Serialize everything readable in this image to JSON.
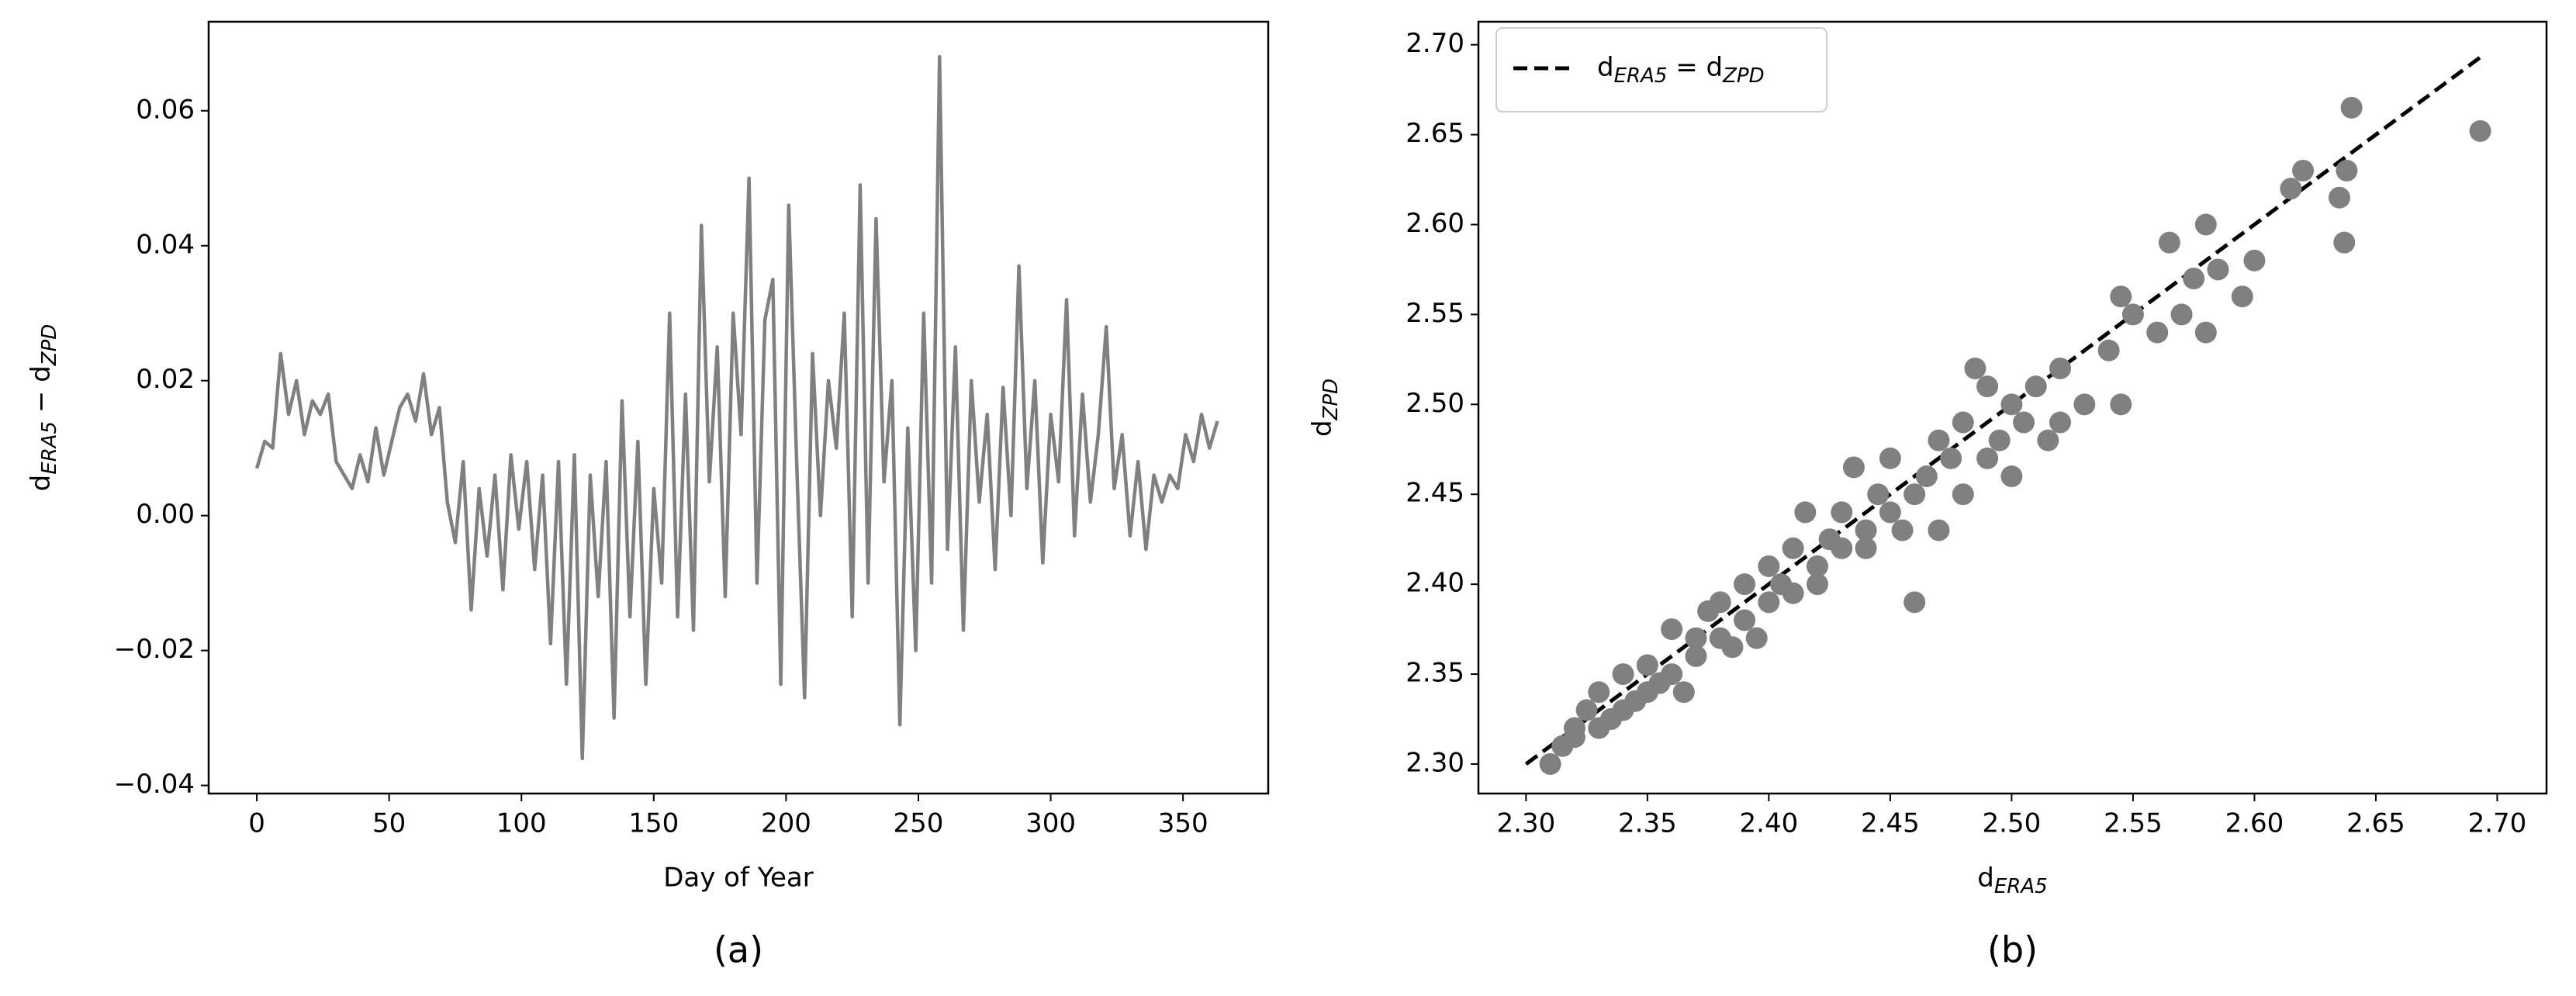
{
  "chart_data": [
    {
      "type": "line",
      "caption": "(a)",
      "xlabel": "Day of Year",
      "ylabel": [
        {
          "text": "d"
        },
        {
          "text": "ERA5",
          "sub": true
        },
        {
          "text": " − d"
        },
        {
          "text": "ZPD",
          "sub": true
        }
      ],
      "xlim": [
        -18.2,
        382.2
      ],
      "ylim": [
        -0.0412,
        0.0732
      ],
      "xticks": [
        0,
        50,
        100,
        150,
        200,
        250,
        300,
        350
      ],
      "yticks": [
        {
          "value": -0.04,
          "label": "−0.04"
        },
        {
          "value": -0.02,
          "label": "−0.02"
        },
        {
          "value": 0,
          "label": "0.00"
        },
        0.02,
        0.04,
        0.06
      ],
      "series": [
        {
          "color": "#808080",
          "x": [
            0,
            3,
            6,
            9,
            12,
            15,
            18,
            21,
            24,
            27,
            30,
            33,
            36,
            39,
            42,
            45,
            48,
            51,
            54,
            57,
            60,
            63,
            66,
            69,
            72,
            75,
            78,
            81,
            84,
            87,
            90,
            93,
            96,
            99,
            102,
            105,
            108,
            111,
            114,
            117,
            120,
            123,
            126,
            129,
            132,
            135,
            138,
            141,
            144,
            147,
            150,
            153,
            156,
            159,
            162,
            165,
            168,
            171,
            174,
            177,
            180,
            183,
            186,
            189,
            192,
            195,
            198,
            201,
            204,
            207,
            210,
            213,
            216,
            219,
            222,
            225,
            228,
            231,
            234,
            237,
            240,
            243,
            246,
            249,
            252,
            255,
            258,
            261,
            264,
            267,
            270,
            273,
            276,
            279,
            282,
            285,
            288,
            291,
            294,
            297,
            300,
            303,
            306,
            309,
            312,
            315,
            318,
            321,
            324,
            327,
            330,
            333,
            336,
            339,
            342,
            345,
            348,
            351,
            354,
            357,
            360,
            363
          ],
          "values": [
            0.007,
            0.011,
            0.01,
            0.024,
            0.015,
            0.02,
            0.012,
            0.017,
            0.015,
            0.018,
            0.008,
            0.006,
            0.004,
            0.009,
            0.005,
            0.013,
            0.006,
            0.011,
            0.016,
            0.018,
            0.014,
            0.021,
            0.012,
            0.016,
            0.002,
            -0.004,
            0.008,
            -0.014,
            0.004,
            -0.006,
            0.006,
            -0.011,
            0.009,
            -0.002,
            0.008,
            -0.008,
            0.006,
            -0.019,
            0.008,
            -0.025,
            0.009,
            -0.036,
            0.006,
            -0.012,
            0.008,
            -0.03,
            0.017,
            -0.015,
            0.011,
            -0.025,
            0.004,
            -0.01,
            0.03,
            -0.015,
            0.018,
            -0.017,
            0.043,
            0.005,
            0.025,
            -0.012,
            0.03,
            0.012,
            0.05,
            -0.01,
            0.029,
            0.035,
            -0.025,
            0.046,
            0.008,
            -0.027,
            0.024,
            0.0,
            0.02,
            0.01,
            0.03,
            -0.015,
            0.049,
            -0.01,
            0.044,
            0.005,
            0.02,
            -0.031,
            0.013,
            -0.02,
            0.03,
            -0.01,
            0.068,
            -0.005,
            0.025,
            -0.017,
            0.02,
            0.002,
            0.015,
            -0.008,
            0.019,
            0.0,
            0.037,
            0.004,
            0.02,
            -0.007,
            0.015,
            0.005,
            0.032,
            -0.003,
            0.018,
            0.002,
            0.012,
            0.028,
            0.004,
            0.012,
            -0.003,
            0.008,
            -0.005,
            0.006,
            0.002,
            0.006,
            0.004,
            0.012,
            0.008,
            0.015,
            0.01,
            0.014
          ]
        }
      ]
    },
    {
      "type": "scatter",
      "caption": "(b)",
      "xlabel": [
        {
          "text": "d"
        },
        {
          "text": "ERA5",
          "sub": true
        }
      ],
      "ylabel": [
        {
          "text": "d"
        },
        {
          "text": "ZPD",
          "sub": true
        }
      ],
      "xlim": [
        2.2804,
        2.7203
      ],
      "ylim": [
        2.2836,
        2.7128
      ],
      "legend": "upper left",
      "xticks": [
        {
          "value": 2.3,
          "label": "2.30"
        },
        2.35,
        {
          "value": 2.4,
          "label": "2.40"
        },
        2.45,
        {
          "value": 2.5,
          "label": "2.50"
        },
        2.55,
        {
          "value": 2.6,
          "label": "2.60"
        },
        2.65,
        {
          "value": 2.7,
          "label": "2.70"
        }
      ],
      "yticks": [
        {
          "value": 2.3,
          "label": "2.30"
        },
        2.35,
        {
          "value": 2.4,
          "label": "2.40"
        },
        2.45,
        {
          "value": 2.5,
          "label": "2.50"
        },
        2.55,
        {
          "value": 2.6,
          "label": "2.60"
        },
        2.65,
        {
          "value": 2.7,
          "label": "2.70"
        }
      ],
      "series": [
        {
          "type": "line",
          "color": "#000000",
          "dash": true,
          "name": [
            {
              "text": "d"
            },
            {
              "text": "ERA5",
              "sub": true
            },
            {
              "text": " = d"
            },
            {
              "text": "ZPD",
              "sub": true
            }
          ],
          "x": [
            2.3,
            2.693
          ],
          "values": [
            2.3,
            2.693
          ]
        },
        {
          "type": "scatter",
          "color": "#808080",
          "x": [
            2.31,
            2.315,
            2.32,
            2.32,
            2.325,
            2.33,
            2.33,
            2.335,
            2.34,
            2.34,
            2.345,
            2.35,
            2.35,
            2.355,
            2.36,
            2.36,
            2.365,
            2.37,
            2.37,
            2.375,
            2.38,
            2.38,
            2.385,
            2.39,
            2.39,
            2.395,
            2.4,
            2.4,
            2.405,
            2.41,
            2.41,
            2.415,
            2.42,
            2.42,
            2.425,
            2.43,
            2.43,
            2.435,
            2.44,
            2.44,
            2.445,
            2.45,
            2.45,
            2.455,
            2.46,
            2.46,
            2.465,
            2.47,
            2.47,
            2.475,
            2.48,
            2.48,
            2.485,
            2.49,
            2.49,
            2.495,
            2.5,
            2.5,
            2.505,
            2.51,
            2.515,
            2.52,
            2.52,
            2.53,
            2.54,
            2.545,
            2.545,
            2.55,
            2.56,
            2.565,
            2.57,
            2.575,
            2.58,
            2.58,
            2.585,
            2.595,
            2.6,
            2.615,
            2.62,
            2.635,
            2.637,
            2.638,
            2.64,
            2.693
          ],
          "values": [
            2.3,
            2.31,
            2.32,
            2.315,
            2.33,
            2.32,
            2.34,
            2.325,
            2.33,
            2.35,
            2.335,
            2.34,
            2.355,
            2.345,
            2.35,
            2.375,
            2.34,
            2.36,
            2.37,
            2.385,
            2.37,
            2.39,
            2.365,
            2.38,
            2.4,
            2.37,
            2.39,
            2.41,
            2.4,
            2.395,
            2.42,
            2.44,
            2.41,
            2.4,
            2.425,
            2.42,
            2.44,
            2.465,
            2.43,
            2.42,
            2.45,
            2.44,
            2.47,
            2.43,
            2.39,
            2.45,
            2.46,
            2.48,
            2.43,
            2.47,
            2.49,
            2.45,
            2.52,
            2.47,
            2.51,
            2.48,
            2.5,
            2.46,
            2.49,
            2.51,
            2.48,
            2.52,
            2.49,
            2.5,
            2.53,
            2.56,
            2.5,
            2.55,
            2.54,
            2.59,
            2.55,
            2.57,
            2.54,
            2.6,
            2.575,
            2.56,
            2.58,
            2.62,
            2.63,
            2.615,
            2.59,
            2.63,
            2.665,
            2.652
          ]
        }
      ]
    }
  ]
}
